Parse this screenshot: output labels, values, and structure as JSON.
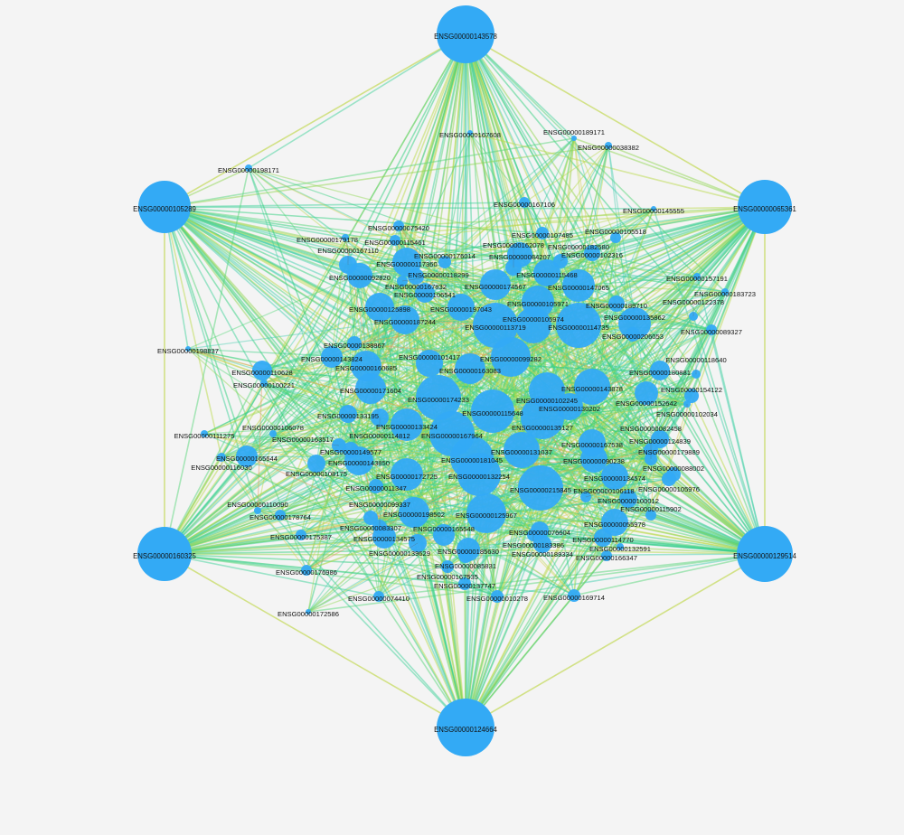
{
  "network": {
    "node_color": "#33aaf5",
    "edge_palette": [
      "#2fcf7d",
      "#3fd19a",
      "#45cfb0",
      "#57d67a",
      "#8fd650",
      "#b9d94a",
      "#d8cf55",
      "#e39a5a"
    ],
    "hub_edge_color": "#c9dc6a",
    "nodes": [
      "ENSG00000143578",
      "ENSG00000105289",
      "ENSG00000065361",
      "ENSG00000160325",
      "ENSG00000129514",
      "ENSG00000124664",
      "ENSG00000167608",
      "ENSG00000189171",
      "ENSG00000038382",
      "ENSG00000198171",
      "ENSG00000167106",
      "ENSG00000145555",
      "ENSG00000075420",
      "ENSG00000179178",
      "ENSG00000115461",
      "ENSG00000107485",
      "ENSG00000105518",
      "ENSG00000102316",
      "ENSG00000176014",
      "ENSG00000162078",
      "ENSG00000182580",
      "ENSG00000084207",
      "ENSG00000167110",
      "ENSG00000117360",
      "ENSG00000167832",
      "ENSG00000118299",
      "ENSG00000092820",
      "ENSG00000106541",
      "ENSG00000174567",
      "ENSG00000115468",
      "ENSG00000147065",
      "ENSG00000125898",
      "ENSG00000197043",
      "ENSG00000105971",
      "ENSG00000187244",
      "ENSG00000189710",
      "ENSG00000135862",
      "ENSG00000113719",
      "ENSG00000105974",
      "ENSG00000114735",
      "ENSG00000122378",
      "ENSG00000089327",
      "ENSG00000206053",
      "ENSG00000157191",
      "ENSG00000183723",
      "ENSG00000138867",
      "ENSG00000143824",
      "ENSG00000160685",
      "ENSG00000101417",
      "ENSG00000163083",
      "ENSG00000099282",
      "ENSG00000198837",
      "ENSG00000110628",
      "ENSG00000100221",
      "ENSG00000171604",
      "ENSG00000174233",
      "ENSG00000143878",
      "ENSG00000180881",
      "ENSG00000118640",
      "ENSG00000152642",
      "ENSG00000154122",
      "ENSG00000102034",
      "ENSG00000115648",
      "ENSG00000102245",
      "ENSG00000135127",
      "ENSG00000130202",
      "ENSG00000133195",
      "ENSG00000114812",
      "ENSG00000133424",
      "ENSG00000167964",
      "ENSG00000111275",
      "ENSG00000106078",
      "ENSG00000165644",
      "ENSG00000116030",
      "ENSG00000149577",
      "ENSG00000163517",
      "ENSG00000143850",
      "ENSG00000108175",
      "ENSG00000181045",
      "ENSG00000131037",
      "ENSG00000167538",
      "ENSG00000124839",
      "ENSG00000179889",
      "ENSG00000090238",
      "ENSG00000082458",
      "ENSG00000172725",
      "ENSG00000132254",
      "ENSG00000011347",
      "ENSG00000134574",
      "ENSG00000088002",
      "ENSG00000105976",
      "ENSG00000215845",
      "ENSG00000100012",
      "ENSG00000106118",
      "ENSG00000110090",
      "ENSG00000178764",
      "ENSG00000083307",
      "ENSG00000198502",
      "ENSG00000125967",
      "ENSG00000099337",
      "ENSG00000115902",
      "ENSG00000175387",
      "ENSG00000134575",
      "ENSG00000165548",
      "ENSG00000139629",
      "ENSG00000185630",
      "ENSG00000085831",
      "ENSG00000076604",
      "ENSG00000183386",
      "ENSG00000055978",
      "ENSG00000114770",
      "ENSG00000189334",
      "ENSG00000132591",
      "ENSG00000166347",
      "ENSG00000167535",
      "ENSG00000176986",
      "ENSG00000137747",
      "ENSG00000074410",
      "ENSG00000010278",
      "ENSG00000169714",
      "ENSG00000172586"
    ]
  }
}
